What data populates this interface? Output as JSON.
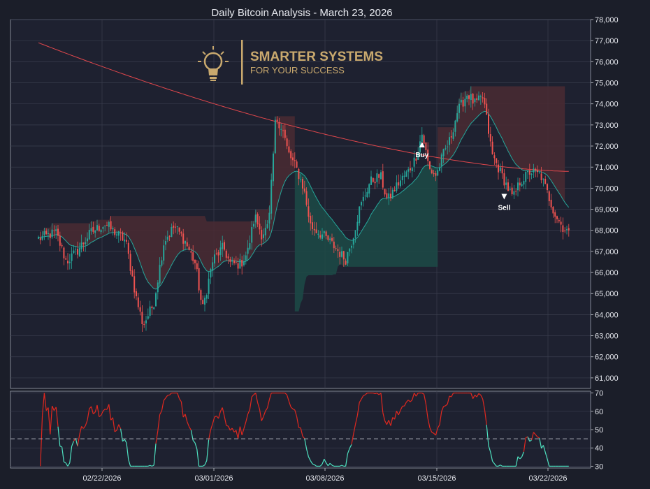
{
  "title": "Daily Bitcoin Analysis - March 23, 2026",
  "logo": {
    "brand": "SMARTER SYSTEMS",
    "tagline": "FOR YOUR SUCCESS",
    "icon": "lightbulb-icon",
    "color": "#c9a96e"
  },
  "colors": {
    "up": "#26a69a",
    "down": "#ef5350",
    "bg": "#1e2130",
    "grid": "#3a3e4e",
    "sma200": "#e0474c",
    "ema20": "#26a69a",
    "cloud_up": "#1c4a47",
    "cloud_down": "#4a2a33",
    "rsi_up": "#4fe3c1",
    "rsi_down": "#e0281f"
  },
  "chart_data": [
    {
      "type": "candlestick",
      "title": "Daily Bitcoin Analysis - March 23, 2026",
      "ylim": [
        60500,
        78000
      ],
      "yticks": [
        "61,000",
        "62,000",
        "63,000",
        "64,000",
        "65,000",
        "66,000",
        "67,000",
        "68,000",
        "69,000",
        "70,000",
        "71,000",
        "72,000",
        "73,000",
        "74,000",
        "75,000",
        "76,000",
        "77,000",
        "78,000"
      ],
      "xticks": [
        "02/22/2026",
        "03/01/2026",
        "03/08/2026",
        "03/15/2026",
        "03/22/2026"
      ],
      "annotations": [
        {
          "label": "Buy",
          "marker": "up-triangle"
        },
        {
          "label": "Sell",
          "marker": "down-triangle"
        }
      ],
      "grid": true,
      "start_price": 67600,
      "end_price": 68000,
      "price_low": 62700,
      "price_high": 76000,
      "sma200_range": [
        76900,
        70800
      ],
      "buy_price": 72100,
      "sell_price": 69600
    },
    {
      "type": "line",
      "ylim": [
        29,
        71
      ],
      "yticks": [
        "30",
        "40",
        "50",
        "60",
        "70"
      ],
      "reference_line": 45,
      "grid": true
    }
  ]
}
